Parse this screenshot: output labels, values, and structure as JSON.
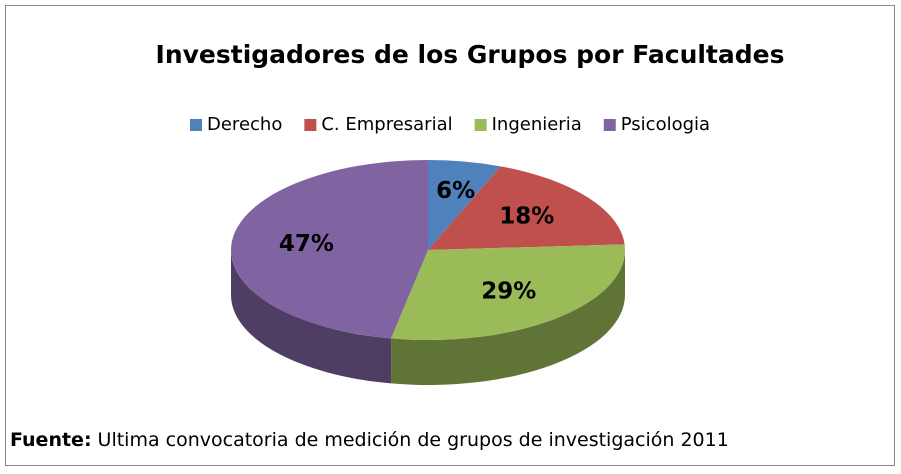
{
  "chart_data": {
    "type": "pie",
    "title": "Investigadores de los Grupos por Facultades",
    "categories": [
      "Derecho",
      "C. Empresarial",
      "Ingenieria",
      "Psicologia"
    ],
    "values": [
      6,
      18,
      29,
      47
    ],
    "value_labels": [
      "6%",
      "18%",
      "29%",
      "47%"
    ],
    "colors": [
      "#4f81bd",
      "#c0504d",
      "#9bbb59",
      "#8064a2"
    ],
    "legend": "top",
    "source_label": "Fuente:",
    "source": "Ultima convocatoria de medición de grupos de investigación 2011"
  }
}
